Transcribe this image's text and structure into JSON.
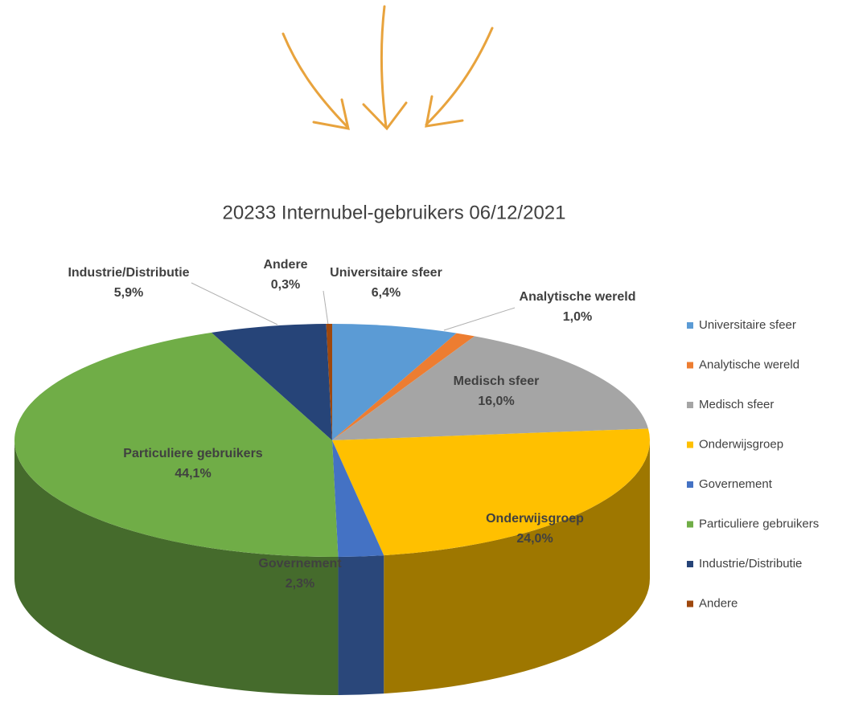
{
  "chart_data": {
    "type": "pie3d",
    "title": "20233 Internubel-gebruikers 06/12/2021",
    "categories": [
      "Universitaire sfeer",
      "Analytische wereld",
      "Medisch sfeer",
      "Onderwijsgroep",
      "Governement",
      "Particuliere gebruikers",
      "Industrie/Distributie",
      "Andere"
    ],
    "values": [
      6.4,
      1.0,
      16.0,
      24.0,
      2.3,
      44.1,
      5.9,
      0.3
    ],
    "value_labels": [
      "6,4%",
      "1,0%",
      "16,0%",
      "24,0%",
      "2,3%",
      "44,1%",
      "5,9%",
      "0,3%"
    ],
    "colors": [
      "#5b9bd5",
      "#ed7d31",
      "#a5a5a5",
      "#ffc000",
      "#4472c4",
      "#70ad47",
      "#264478",
      "#9e480e"
    ],
    "legend": "right"
  }
}
